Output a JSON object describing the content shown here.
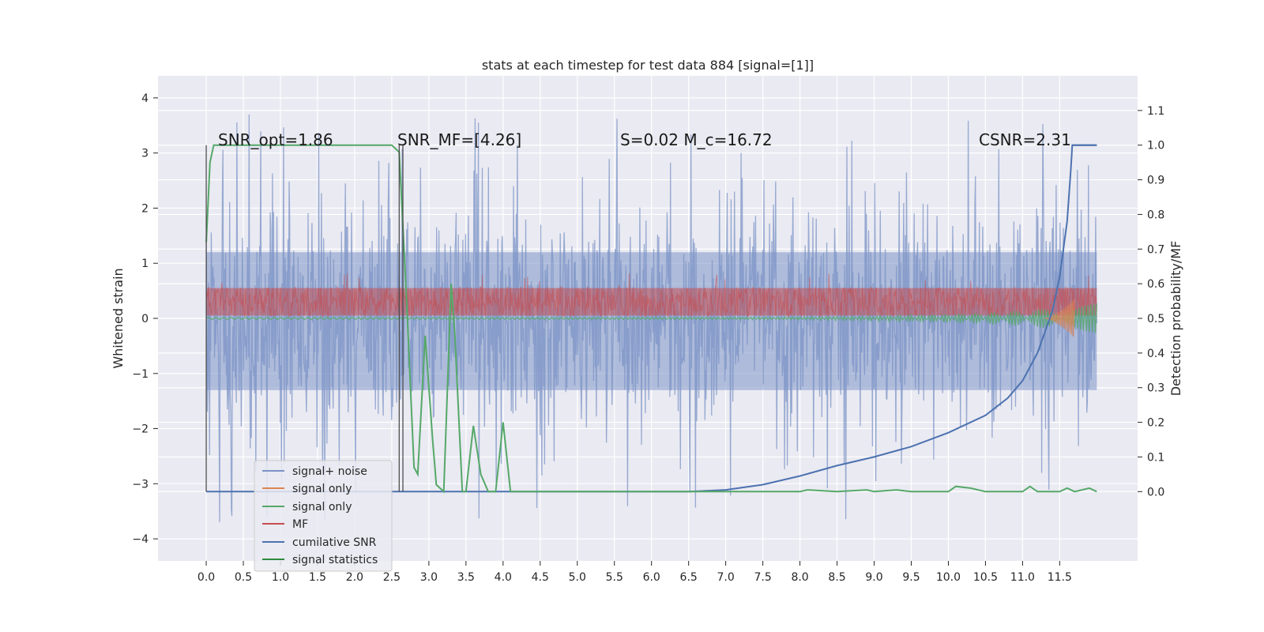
{
  "chart_data": {
    "type": "line",
    "title": "stats at each timestep for test data 884 [signal=[1]]",
    "xlabel": "",
    "ylabel": "Whitened strain",
    "ylabel_right": "Detection probability/MF",
    "xlim": [
      -0.65,
      12.55
    ],
    "ylim": [
      -4.4,
      4.4
    ],
    "ylim_right": [
      -0.2,
      1.2
    ],
    "grid": true,
    "x_ticks": [
      "0.0",
      "0.5",
      "1.0",
      "1.5",
      "2.0",
      "2.5",
      "3.0",
      "3.5",
      "4.0",
      "4.5",
      "5.0",
      "5.5",
      "6.0",
      "6.5",
      "7.0",
      "7.5",
      "8.0",
      "8.5",
      "9.0",
      "9.5",
      "10.0",
      "10.5",
      "11.0",
      "11.5"
    ],
    "y_ticks": [
      "4",
      "3",
      "2",
      "1",
      "0",
      "−1",
      "−2",
      "−3",
      "−4"
    ],
    "y_ticks_right": [
      "1.1",
      "1.0",
      "0.9",
      "0.8",
      "0.7",
      "0.6",
      "0.5",
      "0.4",
      "0.3",
      "0.2",
      "0.1",
      "0.0"
    ],
    "annotations": [
      {
        "text": "SNR_opt=1.86"
      },
      {
        "text": "SNR_MF=[4.26]"
      },
      {
        "text": "S=0.02  M_c=16.72"
      },
      {
        "text": "CSNR=2.31"
      }
    ],
    "legend_position": "lower-left",
    "legend": [
      "signal+ noise",
      "signal only",
      "signal only",
      "MF",
      "cumilative SNR",
      "signal statistics"
    ],
    "series": [
      {
        "name": "signal+ noise",
        "color": "#7b93c6",
        "axis": "left",
        "x_range": [
          0.0,
          12.0
        ],
        "band_y": [
          -2.2,
          2.2
        ],
        "peak_y": [
          -3.7,
          4.0
        ],
        "note": "dense noisy trace"
      },
      {
        "name": "signal only",
        "color": "#dd8452",
        "axis": "left",
        "x_range": [
          11.3,
          11.7
        ],
        "band_y": [
          -0.4,
          0.4
        ]
      },
      {
        "name": "signal only",
        "color": "#55a868",
        "axis": "left",
        "x_range": [
          0.0,
          12.0
        ],
        "band_y": [
          -0.1,
          0.1
        ]
      },
      {
        "name": "MF",
        "color": "#c44e52",
        "axis": "left",
        "x_range": [
          0.0,
          12.0
        ],
        "band_y": [
          0.05,
          0.55
        ]
      },
      {
        "name": "cumilative SNR",
        "color": "#4c72b0",
        "axis": "right",
        "x": [
          0.0,
          6.5,
          7.0,
          7.5,
          8.0,
          8.5,
          9.0,
          9.5,
          10.0,
          10.5,
          10.8,
          11.0,
          11.2,
          11.4,
          11.5,
          11.6,
          11.65,
          11.67,
          11.7,
          11.75,
          11.8,
          11.85,
          11.9,
          11.95,
          12.0
        ],
        "values": [
          0.0,
          0.0,
          0.005,
          0.02,
          0.045,
          0.075,
          0.1,
          0.13,
          0.17,
          0.22,
          0.27,
          0.32,
          0.4,
          0.52,
          0.62,
          0.78,
          0.93,
          1.0,
          1.0,
          1.0,
          1.0,
          1.0,
          1.0,
          1.0,
          1.0
        ]
      },
      {
        "name": "signal statistics",
        "color": "#55a868",
        "axis": "right",
        "x": [
          0.0,
          0.05,
          0.1,
          0.2,
          0.5,
          1.0,
          1.5,
          2.0,
          2.3,
          2.5,
          2.6,
          2.7,
          2.8,
          2.85,
          2.95,
          3.05,
          3.1,
          3.2,
          3.3,
          3.35,
          3.45,
          3.5,
          3.6,
          3.7,
          3.8,
          3.9,
          4.0,
          4.1,
          4.2,
          4.4,
          5.0,
          6.0,
          7.0,
          7.5,
          8.0,
          8.1,
          8.5,
          8.9,
          9.0,
          9.3,
          9.5,
          9.8,
          10.0,
          10.1,
          10.3,
          10.5,
          10.9,
          11.0,
          11.1,
          11.2,
          11.5,
          11.6,
          11.7,
          11.9,
          12.0
        ],
        "values": [
          0.72,
          0.95,
          1.0,
          1.0,
          1.0,
          1.0,
          1.0,
          1.0,
          1.0,
          1.0,
          0.98,
          0.55,
          0.07,
          0.05,
          0.45,
          0.15,
          0.02,
          0.0,
          0.6,
          0.45,
          0.0,
          0.0,
          0.19,
          0.05,
          0.0,
          0.0,
          0.2,
          0.0,
          0.0,
          0.0,
          0.0,
          0.0,
          0.0,
          0.0,
          0.0,
          0.005,
          0.0,
          0.005,
          0.0,
          0.005,
          0.0,
          0.0,
          0.0,
          0.015,
          0.01,
          0.0,
          0.0,
          0.0,
          0.015,
          0.0,
          0.0,
          0.01,
          0.0,
          0.01,
          0.0
        ]
      }
    ]
  }
}
